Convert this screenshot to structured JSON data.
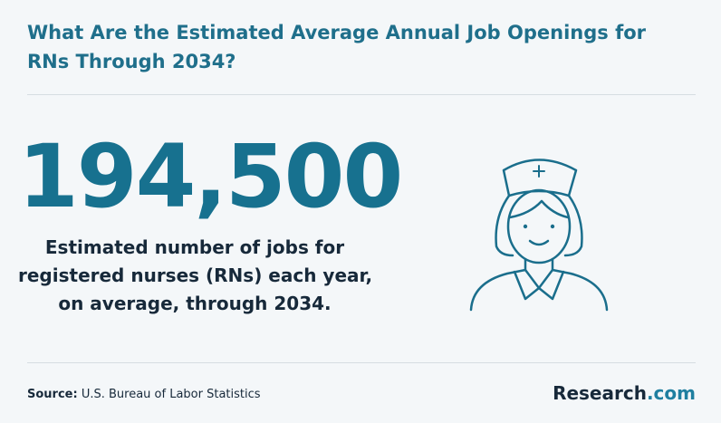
{
  "header": {
    "title": "What Are the Estimated Average Annual Job Openings for RNs Through 2034?"
  },
  "stat": {
    "value": "194,500",
    "description": [
      "Estimated number of jobs for",
      "registered nurses (RNs) each year,",
      "on average, through 2034."
    ]
  },
  "footer": {
    "source_label": "Source:",
    "source": "U.S. Bureau of Labor Statistics",
    "brand": {
      "name": "Research",
      "suffix": ".com"
    }
  }
}
